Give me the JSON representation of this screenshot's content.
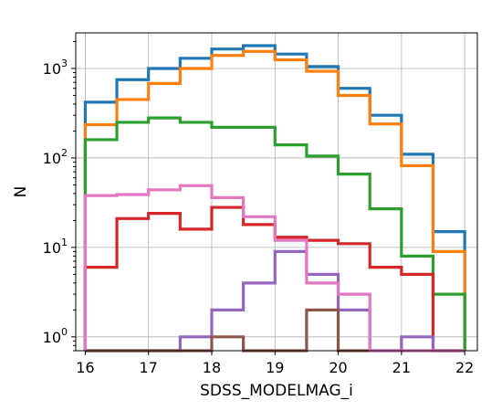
{
  "chart_data": {
    "type": "histogram-step",
    "xlabel": "SDSS_MODELMAG_i",
    "ylabel": "N",
    "x_ticks": [
      16,
      17,
      18,
      19,
      20,
      21,
      22
    ],
    "x_tick_labels": [
      "16",
      "17",
      "18",
      "19",
      "20",
      "21",
      "22"
    ],
    "xlim": [
      15.85,
      22.2
    ],
    "y_scale": "log",
    "ylim": [
      0.7,
      2500
    ],
    "y_ticks": [
      1,
      10,
      100,
      1000
    ],
    "y_tick_labels": [
      {
        "base": "10",
        "exp": "0"
      },
      {
        "base": "10",
        "exp": "1"
      },
      {
        "base": "10",
        "exp": "2"
      },
      {
        "base": "10",
        "exp": "3"
      }
    ],
    "grid": true,
    "bin_edges": [
      16,
      16.5,
      17,
      17.5,
      18,
      18.5,
      19,
      19.5,
      20,
      20.5,
      21,
      21.5,
      22
    ],
    "series": [
      {
        "color": "#1f77b4",
        "values": [
          420,
          750,
          1000,
          1300,
          1650,
          1800,
          1450,
          1050,
          600,
          300,
          110,
          15
        ]
      },
      {
        "color": "#ff7f0e",
        "values": [
          235,
          450,
          680,
          1000,
          1400,
          1550,
          1250,
          930,
          500,
          240,
          82,
          9
        ]
      },
      {
        "color": "#2ca02c",
        "values": [
          160,
          250,
          280,
          250,
          220,
          220,
          140,
          105,
          66,
          27,
          8,
          3
        ]
      },
      {
        "color": "#d62728",
        "values": [
          6,
          21,
          24,
          16,
          28,
          18,
          13,
          12,
          11,
          6,
          5,
          0
        ]
      },
      {
        "color": "#9467bd",
        "values": [
          0,
          0,
          0,
          1,
          2,
          4,
          9,
          5,
          2,
          0,
          1,
          0
        ]
      },
      {
        "color": "#8c564b",
        "values": [
          0,
          0,
          0,
          0,
          1,
          0,
          0,
          2,
          0,
          0,
          0,
          0
        ]
      },
      {
        "color": "#e377c2",
        "values": [
          38,
          39,
          44,
          49,
          36,
          22,
          12,
          4,
          3,
          0,
          0,
          0
        ]
      }
    ]
  }
}
